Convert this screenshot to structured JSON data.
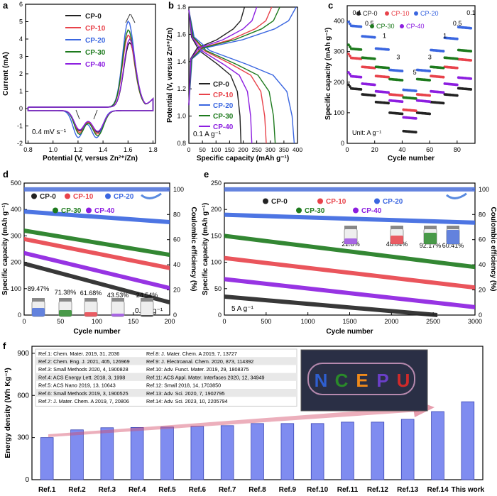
{
  "colors": {
    "cp0": "#222222",
    "cp10": "#e8424a",
    "cp20": "#3a66e0",
    "cp30": "#1d7a1d",
    "cp40": "#8c1ee0",
    "bar": "#7f8cf0",
    "arrow": "#d44d6a",
    "ce": "#4a6fd9"
  },
  "legend": [
    "CP-0",
    "CP-10",
    "CP-20",
    "CP-30",
    "CP-40"
  ],
  "chart_data": [
    {
      "panel": "a",
      "type": "line",
      "title": "",
      "xlabel": "Potential (V, versus Zn²⁺/Zn)",
      "ylabel": "Current (mA)",
      "xlim": [
        0.78,
        1.82
      ],
      "ylim": [
        -2,
        6
      ],
      "xticks": [
        "0.8",
        "1.0",
        "1.2",
        "1.4",
        "1.6",
        "1.8"
      ],
      "yticks": [
        "-2",
        "-1",
        "0",
        "1",
        "2",
        "3",
        "4",
        "5",
        "6"
      ],
      "annotation": "0.4 mV s⁻¹",
      "series": [
        {
          "name": "CP-0",
          "anodic_peak": [
            1.61,
            3.7
          ],
          "cathodic_peaks": [
            [
              1.21,
              -1.1
            ],
            [
              1.36,
              -1.2
            ]
          ]
        },
        {
          "name": "CP-10",
          "anodic_peak": [
            1.6,
            4.2
          ],
          "cathodic_peaks": [
            [
              1.21,
              -1.2
            ],
            [
              1.36,
              -1.3
            ]
          ]
        },
        {
          "name": "CP-20",
          "anodic_peak": [
            1.6,
            5.0
          ],
          "cathodic_peaks": [
            [
              1.2,
              -1.5
            ],
            [
              1.35,
              -1.5
            ]
          ]
        },
        {
          "name": "CP-30",
          "anodic_peak": [
            1.6,
            4.5
          ],
          "cathodic_peaks": [
            [
              1.21,
              -1.3
            ],
            [
              1.36,
              -1.4
            ]
          ]
        },
        {
          "name": "CP-40",
          "anodic_peak": [
            1.61,
            3.9
          ],
          "cathodic_peaks": [
            [
              1.21,
              -1.05
            ],
            [
              1.36,
              -1.15
            ]
          ]
        }
      ]
    },
    {
      "panel": "b",
      "type": "line",
      "title": "",
      "xlabel": "Specific capacity (mAh g⁻¹)",
      "ylabel": "Potential (V, versus Zn²⁺/Zn)",
      "xlim": [
        0,
        400
      ],
      "ylim": [
        0.8,
        1.8
      ],
      "xticks": [
        "0",
        "50",
        "100",
        "150",
        "200",
        "250",
        "300",
        "350",
        "400"
      ],
      "yticks": [
        "0.8",
        "1.0",
        "1.2",
        "1.4",
        "1.6",
        "1.8"
      ],
      "annotation": "0.1 A g⁻¹",
      "series": [
        {
          "name": "CP-0",
          "discharge_capacity": 192,
          "charge_capacity": 205
        },
        {
          "name": "CP-10",
          "discharge_capacity": 285,
          "charge_capacity": 305
        },
        {
          "name": "CP-20",
          "discharge_capacity": 388,
          "charge_capacity": 395
        },
        {
          "name": "CP-30",
          "discharge_capacity": 318,
          "charge_capacity": 335
        },
        {
          "name": "CP-40",
          "discharge_capacity": 232,
          "charge_capacity": 250
        }
      ]
    },
    {
      "panel": "c",
      "type": "scatter",
      "title": "",
      "xlabel": "Cycle number",
      "ylabel": "Specific capacity (mAh g⁻¹)",
      "xlim": [
        0,
        93
      ],
      "ylim": [
        0,
        450
      ],
      "xticks": [
        "0",
        "20",
        "40",
        "60",
        "80"
      ],
      "yticks": [
        "0",
        "100",
        "200",
        "300",
        "400"
      ],
      "unit_label": "Unit: A g⁻¹",
      "rate_labels": [
        "0.1",
        "0.5",
        "1",
        "3",
        "5",
        "3",
        "1",
        "0.5",
        "0.1"
      ],
      "rates_A_per_g": [
        0.1,
        0.5,
        1,
        3,
        5,
        3,
        1,
        0.5,
        0.1
      ],
      "series": [
        {
          "name": "CP-0",
          "values": [
            180,
            160,
            135,
            100,
            40,
            100,
            135,
            160,
            180
          ]
        },
        {
          "name": "CP-10",
          "values": [
            280,
            250,
            220,
            160,
            110,
            160,
            220,
            250,
            275
          ]
        },
        {
          "name": "CP-20",
          "values": [
            385,
            350,
            310,
            240,
            175,
            240,
            305,
            345,
            380
          ]
        },
        {
          "name": "CP-30",
          "values": [
            310,
            280,
            250,
            210,
            150,
            210,
            250,
            280,
            305
          ]
        },
        {
          "name": "CP-40",
          "values": [
            220,
            195,
            170,
            140,
            85,
            140,
            170,
            195,
            215
          ]
        }
      ]
    },
    {
      "panel": "d",
      "type": "line",
      "title": "",
      "xlabel": "Cycle number",
      "ylabel": "Specific capacity (mAh g⁻¹)",
      "y2label": "Coulombic efficiency (%)",
      "xlim": [
        0,
        200
      ],
      "ylim": [
        0,
        500
      ],
      "y2lim": [
        0,
        105
      ],
      "xticks": [
        "0",
        "50",
        "100",
        "150",
        "200"
      ],
      "yticks": [
        "0",
        "100",
        "200",
        "300",
        "400",
        "500"
      ],
      "y2ticks": [
        "0",
        "20",
        "40",
        "60",
        "80",
        "100"
      ],
      "annotation": "0.1 A g⁻¹",
      "retention_labels": [
        "89.47%",
        "71.38%",
        "61.68%",
        "43.53%",
        "24.54%"
      ],
      "series": [
        {
          "name": "CP-0",
          "start": 195,
          "end": 48,
          "retention_pct": 24.54
        },
        {
          "name": "CP-10",
          "start": 288,
          "end": 178,
          "retention_pct": 61.68
        },
        {
          "name": "CP-20",
          "start": 392,
          "end": 352,
          "retention_pct": 89.47
        },
        {
          "name": "CP-30",
          "start": 320,
          "end": 228,
          "retention_pct": 71.38
        },
        {
          "name": "CP-40",
          "start": 235,
          "end": 102,
          "retention_pct": 43.53
        }
      ],
      "coulombic_efficiency_pct": 100
    },
    {
      "panel": "e",
      "type": "line",
      "title": "",
      "xlabel": "Cycle number",
      "ylabel": "Specific capacity (mAh g⁻¹)",
      "y2label": "Coulombic efficiency (%)",
      "xlim": [
        0,
        3000
      ],
      "ylim": [
        0,
        250
      ],
      "y2lim": [
        0,
        105
      ],
      "xticks": [
        "0",
        "500",
        "1000",
        "1500",
        "2000",
        "2500",
        "3000"
      ],
      "yticks": [
        "0",
        "50",
        "100",
        "150",
        "200",
        "250"
      ],
      "y2ticks": [
        "0",
        "20",
        "40",
        "60",
        "80",
        "100"
      ],
      "annotation": "5 A g⁻¹",
      "retention_labels": [
        "22.8%",
        "48.04%",
        "60.41%",
        "92.17%"
      ],
      "series": [
        {
          "name": "CP-0",
          "start": 35,
          "end": 0,
          "end_cycle": 2550
        },
        {
          "name": "CP-10",
          "start": 108,
          "end": 52,
          "end_cycle": 3000
        },
        {
          "name": "CP-20",
          "start": 190,
          "end": 175,
          "end_cycle": 3000
        },
        {
          "name": "CP-30",
          "start": 150,
          "end": 91,
          "end_cycle": 3000
        },
        {
          "name": "CP-40",
          "start": 68,
          "end": 15,
          "end_cycle": 3000
        }
      ],
      "coulombic_efficiency_pct": 100
    },
    {
      "panel": "f",
      "type": "bar",
      "title": "",
      "xlabel": "",
      "ylabel": "Energy density (Wh Kg⁻¹)",
      "ylim": [
        0,
        950
      ],
      "yticks": [
        "0",
        "300",
        "600",
        "900"
      ],
      "categories": [
        "Ref.1",
        "Ref.2",
        "Ref.3",
        "Ref.4",
        "Ref.5",
        "Ref.6",
        "Ref.7",
        "Ref.8",
        "Ref.9",
        "Ref.10",
        "Ref.11",
        "Ref.12",
        "Ref.13",
        "Ref.14",
        "This work"
      ],
      "values": [
        300,
        355,
        370,
        372,
        375,
        380,
        385,
        400,
        400,
        400,
        410,
        410,
        430,
        485,
        555
      ],
      "references": [
        "Ref.1: Chem. Mater. 2019, 31, 2036",
        "Ref.2: Chem. Eng. J. 2021, 405, 126969",
        "Ref.3: Small Methods 2020, 4, 1900828",
        "Ref.4: ACS Energy Lett. 2018, 3, 1998",
        "Ref.5: ACS Nano 2019, 13, 10643",
        "Ref.6: Small Methods 2019, 3, 1900525",
        "Ref.7: J. Mater. Chem. A 2019, 7, 20806",
        "Ref.8: J. Mater. Chem. A 2019, 7, 13727",
        "Ref.9: J. Electroanal. Chem. 2020, 873, 114392",
        "Ref.10: Adv. Funct. Mater. 2019, 29, 1808375",
        "Ref.11: ACS Appl. Mater. Interfaces 2020, 12, 34949",
        "Ref.12: Small 2018, 14, 1703850",
        "Ref.13: Adv. Sci. 2020, 7, 1902795",
        "Ref.14: Adv. Sci. 2023, 10, 2205794"
      ],
      "photo_text": "NCEPU"
    }
  ]
}
